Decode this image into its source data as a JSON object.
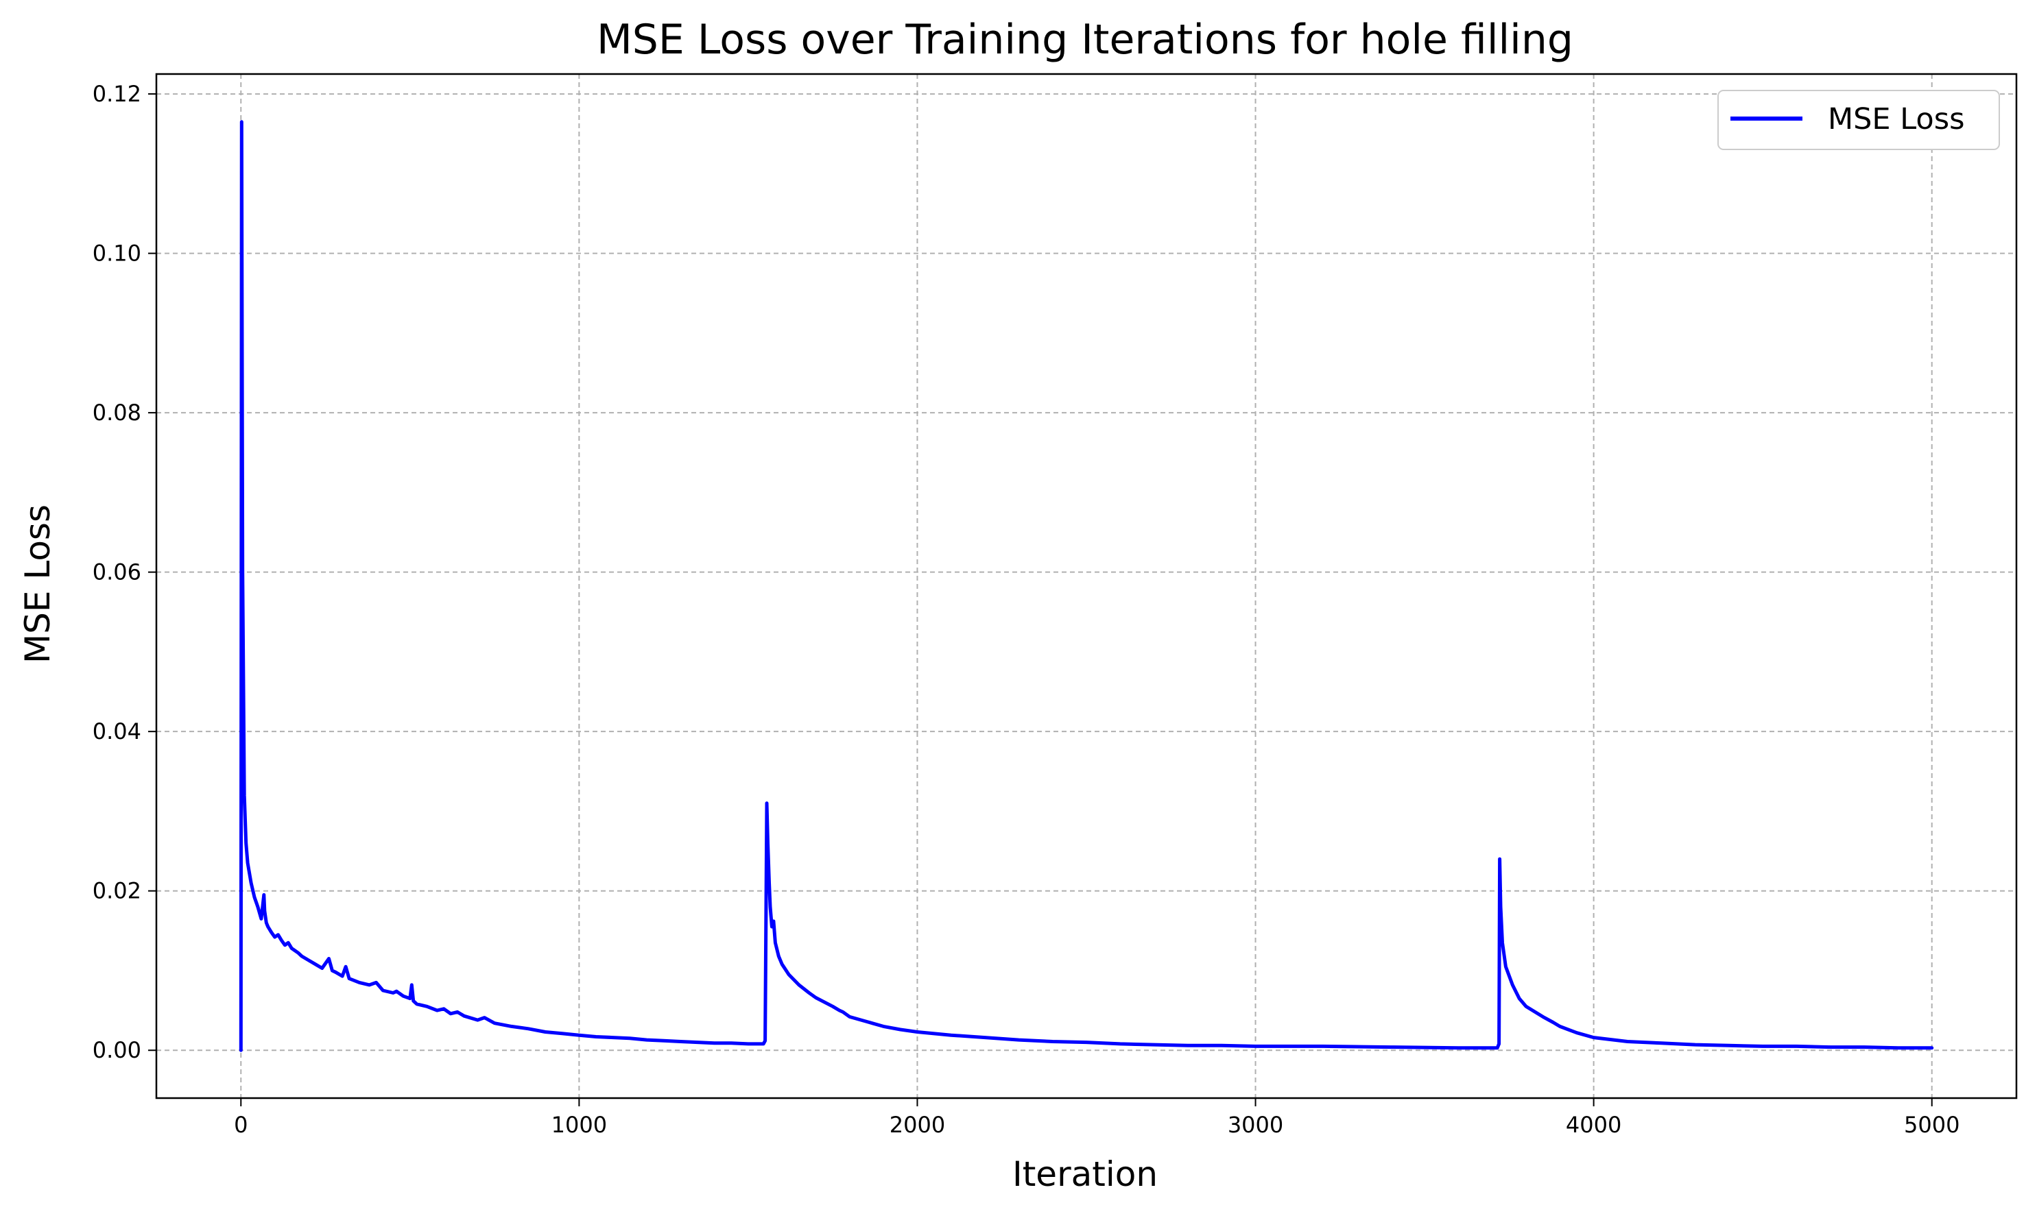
{
  "chart_data": {
    "type": "line",
    "title": "MSE Loss over Training Iterations for hole filling",
    "xlabel": "Iteration",
    "ylabel": "MSE Loss",
    "xlim": [
      -250,
      5250
    ],
    "ylim": [
      -0.006,
      0.1225
    ],
    "xticks": [
      0,
      1000,
      2000,
      3000,
      4000,
      5000
    ],
    "xtick_labels": [
      "0",
      "1000",
      "2000",
      "3000",
      "4000",
      "5000"
    ],
    "yticks": [
      0.0,
      0.02,
      0.04,
      0.06,
      0.08,
      0.1,
      0.12
    ],
    "ytick_labels": [
      "0.00",
      "0.02",
      "0.04",
      "0.06",
      "0.08",
      "0.10",
      "0.12"
    ],
    "grid": true,
    "legend_position": "top-right",
    "series": [
      {
        "name": "MSE Loss",
        "color": "#0000ff",
        "x": [
          0,
          2,
          5,
          10,
          15,
          20,
          30,
          40,
          50,
          60,
          68,
          70,
          75,
          80,
          90,
          100,
          110,
          120,
          130,
          140,
          150,
          160,
          170,
          180,
          200,
          220,
          240,
          260,
          270,
          280,
          300,
          310,
          320,
          350,
          380,
          400,
          420,
          450,
          460,
          480,
          500,
          505,
          510,
          520,
          550,
          580,
          600,
          620,
          640,
          660,
          700,
          720,
          750,
          800,
          850,
          900,
          950,
          1000,
          1050,
          1100,
          1150,
          1200,
          1250,
          1300,
          1350,
          1400,
          1450,
          1500,
          1530,
          1545,
          1550,
          1555,
          1558,
          1562,
          1565,
          1570,
          1575,
          1580,
          1590,
          1600,
          1620,
          1650,
          1680,
          1700,
          1750,
          1770,
          1780,
          1800,
          1850,
          1900,
          1950,
          2000,
          2100,
          2200,
          2300,
          2400,
          2500,
          2600,
          2700,
          2800,
          2900,
          3000,
          3200,
          3400,
          3600,
          3700,
          3715,
          3720,
          3722,
          3725,
          3730,
          3740,
          3760,
          3780,
          3800,
          3850,
          3880,
          3900,
          3950,
          4000,
          4100,
          4200,
          4300,
          4400,
          4500,
          4600,
          4700,
          4800,
          4900,
          5000
        ],
        "values": [
          0.0,
          0.1165,
          0.06,
          0.032,
          0.026,
          0.0235,
          0.021,
          0.0192,
          0.018,
          0.0165,
          0.0195,
          0.0175,
          0.016,
          0.0155,
          0.0148,
          0.0142,
          0.0145,
          0.0138,
          0.0132,
          0.0135,
          0.0128,
          0.0125,
          0.0122,
          0.0118,
          0.0113,
          0.0108,
          0.0103,
          0.0115,
          0.01,
          0.0098,
          0.0093,
          0.0105,
          0.009,
          0.0085,
          0.0082,
          0.0085,
          0.0075,
          0.0072,
          0.0074,
          0.0068,
          0.0065,
          0.0082,
          0.0062,
          0.0058,
          0.0055,
          0.005,
          0.0052,
          0.0046,
          0.0048,
          0.0043,
          0.0038,
          0.0041,
          0.0034,
          0.003,
          0.0027,
          0.0023,
          0.0021,
          0.0019,
          0.0017,
          0.0016,
          0.0015,
          0.0013,
          0.0012,
          0.0011,
          0.001,
          0.0009,
          0.0009,
          0.0008,
          0.0008,
          0.0008,
          0.0012,
          0.031,
          0.026,
          0.021,
          0.018,
          0.0155,
          0.0162,
          0.0135,
          0.0118,
          0.0108,
          0.0095,
          0.0082,
          0.0072,
          0.0066,
          0.0055,
          0.005,
          0.0048,
          0.0042,
          0.0036,
          0.003,
          0.0026,
          0.0023,
          0.0019,
          0.0016,
          0.0013,
          0.0011,
          0.001,
          0.0008,
          0.0007,
          0.0006,
          0.0006,
          0.0005,
          0.0005,
          0.0004,
          0.0003,
          0.0003,
          0.0003,
          0.0008,
          0.024,
          0.018,
          0.0135,
          0.0105,
          0.0082,
          0.0065,
          0.0055,
          0.0042,
          0.0035,
          0.003,
          0.0022,
          0.0016,
          0.0011,
          0.0009,
          0.0007,
          0.0006,
          0.0005,
          0.0005,
          0.0004,
          0.0004,
          0.0003,
          0.0003
        ]
      }
    ]
  }
}
